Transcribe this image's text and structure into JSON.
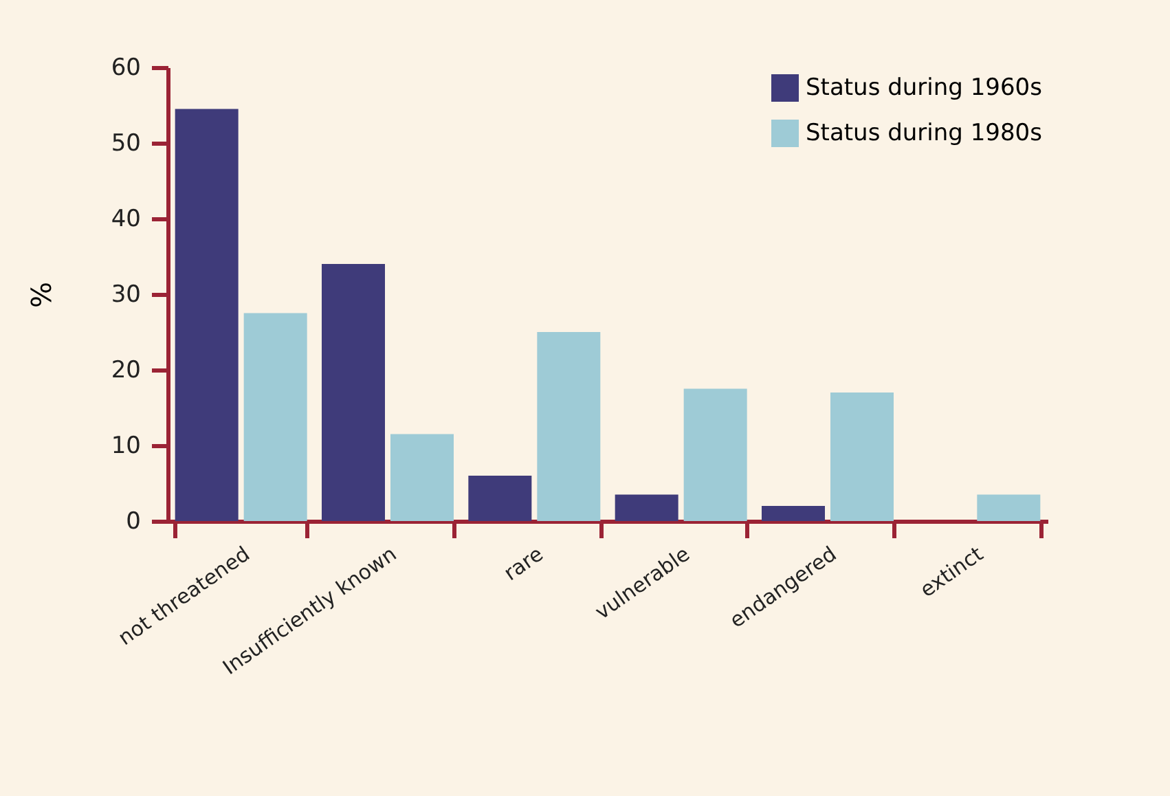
{
  "chart_data": {
    "type": "bar",
    "ylabel": "%",
    "categories": [
      "not threatened",
      "Insufficiently known",
      "rare",
      "vulnerable",
      "endangered",
      "extinct"
    ],
    "series": [
      {
        "name": "Status during 1960s",
        "color": "#3f3b7a",
        "values": [
          54.5,
          34,
          6,
          3.5,
          2,
          0
        ]
      },
      {
        "name": "Status during 1980s",
        "color": "#9ecbd6",
        "values": [
          27.5,
          11.5,
          25,
          17.5,
          17,
          3.5
        ]
      }
    ],
    "ylim": [
      0,
      60
    ],
    "yticks": [
      0,
      10,
      20,
      30,
      40,
      50,
      60
    ],
    "grid": false,
    "legend": "top right"
  }
}
